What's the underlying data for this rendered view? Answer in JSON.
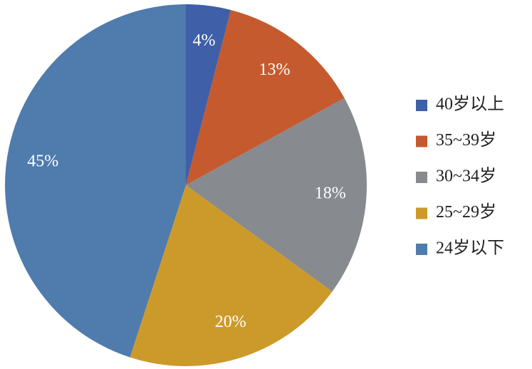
{
  "chart_data": {
    "type": "pie",
    "categories": [
      "40岁以上",
      "35~39岁",
      "30~34岁",
      "25~29岁",
      "24岁以下"
    ],
    "values": [
      4,
      13,
      18,
      20,
      45
    ],
    "value_labels": [
      "4%",
      "13%",
      "18%",
      "20%",
      "45%"
    ],
    "colors": [
      "#3f5fa8",
      "#c55a2f",
      "#878a8f",
      "#cc9a2a",
      "#4f7bad"
    ],
    "legend": "right"
  }
}
